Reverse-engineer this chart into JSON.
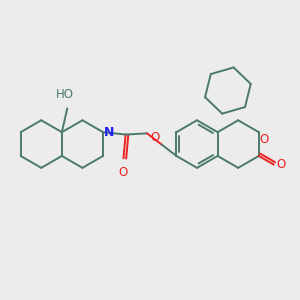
{
  "background_color": "#ececec",
  "bond_color": "#4a7a6a",
  "bond_width": 1.4,
  "atom_colors": {
    "N": "#2020ee",
    "O": "#ee2020",
    "C": "#4a7a6a"
  },
  "font_size": 8.5,
  "figure_size": [
    3.0,
    3.0
  ],
  "dpi": 100
}
